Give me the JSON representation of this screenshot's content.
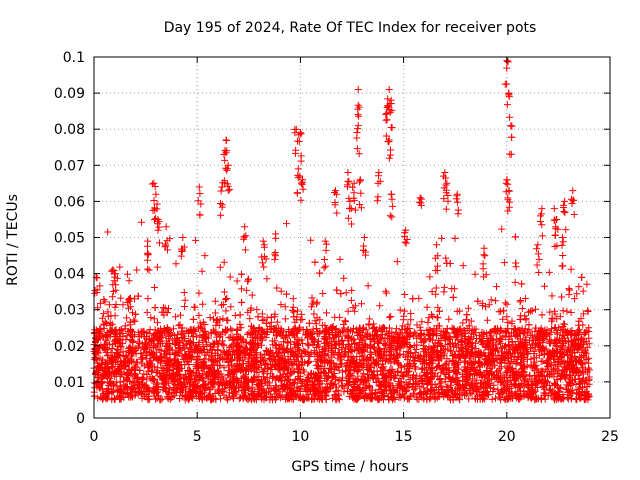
{
  "chart_data": {
    "type": "scatter",
    "title": "Day 195 of 2024, Rate Of TEC Index for receiver pots",
    "xlabel": "GPS time / hours",
    "ylabel": "ROTI / TECUs",
    "xlim": [
      0,
      25
    ],
    "ylim": [
      0,
      0.1
    ],
    "x_ticks": [
      "0",
      "5",
      "10",
      "15",
      "20",
      "25"
    ],
    "y_ticks": [
      "0",
      "0.01",
      "0.02",
      "0.03",
      "0.04",
      "0.05",
      "0.06",
      "0.07",
      "0.08",
      "0.09",
      "0.1"
    ],
    "grid": true,
    "marker": "+",
    "series_color": "#ff0000",
    "data_range_x": [
      0,
      24
    ],
    "bulk_band": [
      0.005,
      0.025
    ],
    "notable_points": [
      {
        "x": 2.9,
        "y": 0.065
      },
      {
        "x": 3.0,
        "y": 0.062
      },
      {
        "x": 3.1,
        "y": 0.055
      },
      {
        "x": 5.1,
        "y": 0.064
      },
      {
        "x": 6.4,
        "y": 0.077
      },
      {
        "x": 6.3,
        "y": 0.073
      },
      {
        "x": 6.5,
        "y": 0.07
      },
      {
        "x": 6.2,
        "y": 0.064
      },
      {
        "x": 9.8,
        "y": 0.08
      },
      {
        "x": 10.0,
        "y": 0.079
      },
      {
        "x": 9.9,
        "y": 0.069
      },
      {
        "x": 10.1,
        "y": 0.066
      },
      {
        "x": 11.7,
        "y": 0.063
      },
      {
        "x": 12.3,
        "y": 0.068
      },
      {
        "x": 12.4,
        "y": 0.06
      },
      {
        "x": 12.6,
        "y": 0.065
      },
      {
        "x": 12.8,
        "y": 0.091
      },
      {
        "x": 12.8,
        "y": 0.081
      },
      {
        "x": 12.9,
        "y": 0.066
      },
      {
        "x": 13.8,
        "y": 0.068
      },
      {
        "x": 14.3,
        "y": 0.091
      },
      {
        "x": 14.4,
        "y": 0.088
      },
      {
        "x": 14.2,
        "y": 0.086
      },
      {
        "x": 14.3,
        "y": 0.077
      },
      {
        "x": 14.4,
        "y": 0.062
      },
      {
        "x": 15.8,
        "y": 0.061
      },
      {
        "x": 17.0,
        "y": 0.068
      },
      {
        "x": 17.1,
        "y": 0.065
      },
      {
        "x": 17.6,
        "y": 0.062
      },
      {
        "x": 20.0,
        "y": 0.099
      },
      {
        "x": 20.1,
        "y": 0.09
      },
      {
        "x": 20.2,
        "y": 0.081
      },
      {
        "x": 20.0,
        "y": 0.066
      },
      {
        "x": 20.1,
        "y": 0.063
      },
      {
        "x": 21.7,
        "y": 0.058
      },
      {
        "x": 22.3,
        "y": 0.058
      },
      {
        "x": 22.8,
        "y": 0.06
      },
      {
        "x": 23.2,
        "y": 0.063
      },
      {
        "x": 22.4,
        "y": 0.055
      },
      {
        "x": 22.7,
        "y": 0.05
      },
      {
        "x": 21.5,
        "y": 0.048
      },
      {
        "x": 18.9,
        "y": 0.047
      },
      {
        "x": 16.6,
        "y": 0.048
      },
      {
        "x": 15.1,
        "y": 0.052
      },
      {
        "x": 13.1,
        "y": 0.05
      },
      {
        "x": 11.2,
        "y": 0.049
      },
      {
        "x": 8.8,
        "y": 0.051
      },
      {
        "x": 8.2,
        "y": 0.049
      },
      {
        "x": 7.3,
        "y": 0.053
      },
      {
        "x": 4.3,
        "y": 0.05
      },
      {
        "x": 2.6,
        "y": 0.049
      },
      {
        "x": 3.5,
        "y": 0.053
      },
      {
        "x": 0.9,
        "y": 0.041
      },
      {
        "x": 1.0,
        "y": 0.04
      },
      {
        "x": 0.1,
        "y": 0.039
      },
      {
        "x": 1.7,
        "y": 0.038
      }
    ]
  }
}
